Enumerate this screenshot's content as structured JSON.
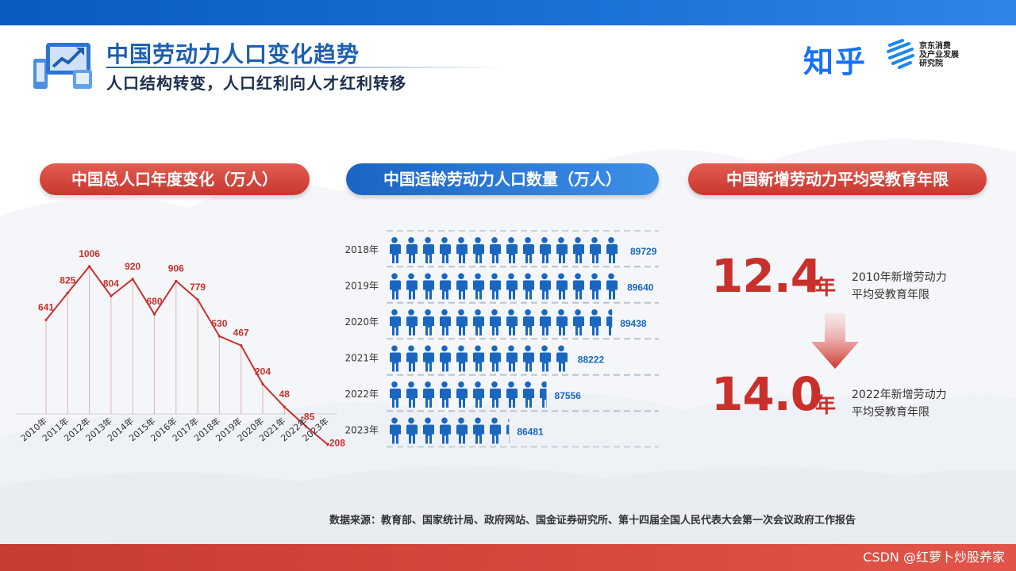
{
  "header": {
    "title": "中国劳动力人口变化趋势",
    "subtitle": "人口结构转变，人口红利向人才红利转移",
    "brand_zhihu": "知乎",
    "brand_jd_lines": [
      "京东消费",
      "及产业发展",
      "研究院"
    ]
  },
  "sections": {
    "population_title": "中国总人口年度变化（万人）",
    "labor_title": "中国适龄劳动力人口数量（万人）",
    "education_title": "中国新增劳动力平均受教育年限"
  },
  "chart_data": [
    {
      "type": "line",
      "categories": [
        "2010年",
        "2011年",
        "2012年",
        "2013年",
        "2014年",
        "2015年",
        "2016年",
        "2017年",
        "2018年",
        "2019年",
        "2020年",
        "2021年",
        "2022年",
        "2023年"
      ],
      "values": [
        641,
        825,
        1006,
        804,
        920,
        680,
        906,
        779,
        530,
        467,
        204,
        48,
        -85,
        -208
      ],
      "labels": [
        "641",
        "825",
        "1006",
        "804",
        "920",
        "680",
        "906",
        "779",
        "530",
        "467",
        "204",
        "48",
        "-85",
        "-208"
      ],
      "color": "#c9302c"
    },
    {
      "type": "bar",
      "categories": [
        "2018年",
        "2019年",
        "2020年",
        "2021年",
        "2022年",
        "2023年"
      ],
      "values": [
        89729,
        89640,
        89438,
        88222,
        87556,
        86481
      ],
      "labels": [
        "89729",
        "89640",
        "89438",
        "88222",
        "87556",
        "86481"
      ],
      "color": "#1a67c0"
    }
  ],
  "education": {
    "items": [
      {
        "value": "12.4",
        "unit": "年",
        "desc_line1": "2010年新增劳动力",
        "desc_line2": "平均受教育年限"
      },
      {
        "value": "14.0",
        "unit": "年",
        "desc_line1": "2022年新增劳动力",
        "desc_line2": "平均受教育年限"
      }
    ]
  },
  "footer": {
    "source": "数据来源：教育部、国家统计局、政府网站、国金证券研究所、第十四届全国人民代表大会第一次会议政府工作报告",
    "watermark": "CSDN @红萝卜炒股养家"
  },
  "colors": {
    "red": "#c9302c",
    "blue": "#1a67c0",
    "title_blue": "#1d5fb3"
  }
}
